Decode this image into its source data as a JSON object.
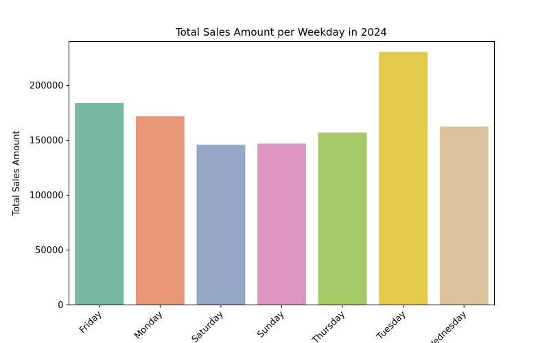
{
  "chart_data": {
    "type": "bar",
    "title": "Total Sales Amount per Weekday in 2024",
    "xlabel": "",
    "ylabel": "Total Sales Amount",
    "categories": [
      "Friday",
      "Monday",
      "Saturday",
      "Sunday",
      "Thursday",
      "Tuesday",
      "Wednesday"
    ],
    "values": [
      184000,
      172000,
      146000,
      147000,
      157000,
      230500,
      162500
    ],
    "ylim": [
      0,
      240000
    ],
    "yticks": [
      0,
      50000,
      100000,
      150000,
      200000
    ],
    "grid": false,
    "legend": "none",
    "colors": [
      "#76b6a0",
      "#e89876",
      "#96a6c5",
      "#db96c0",
      "#a5c966",
      "#e5c94b",
      "#dbc49c"
    ]
  }
}
